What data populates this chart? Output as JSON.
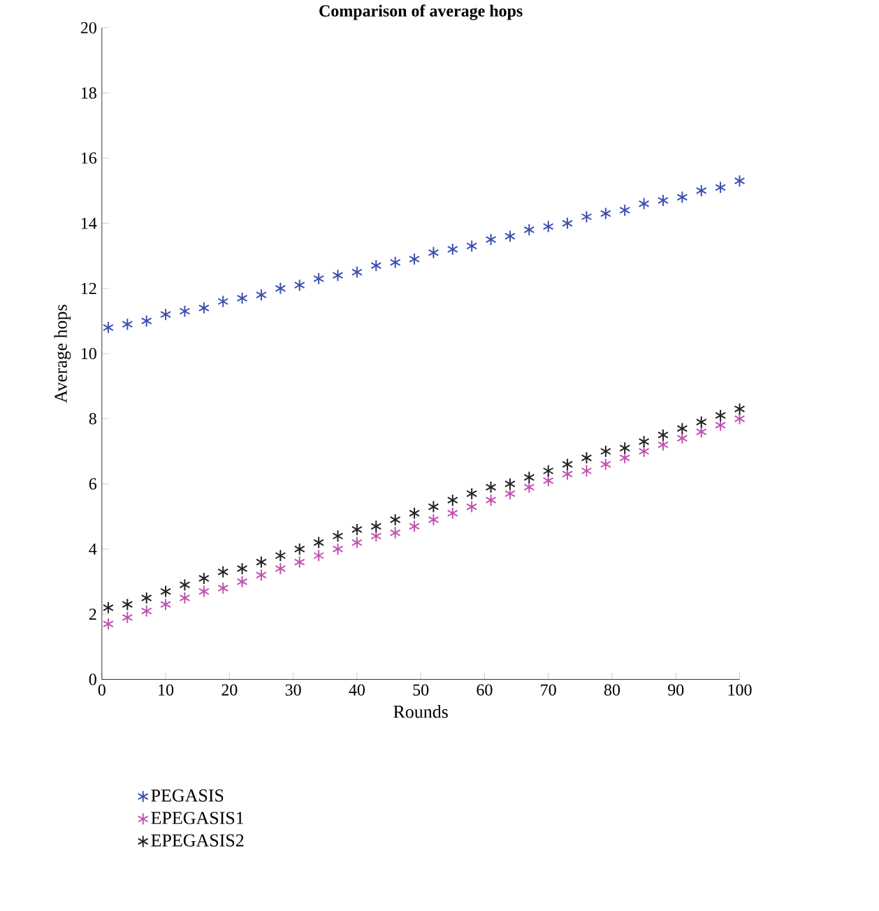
{
  "chart_data": {
    "type": "scatter",
    "title": "Comparison of average hops",
    "xlabel": "Rounds",
    "ylabel": "Average hops",
    "x": [
      1,
      4,
      7,
      10,
      13,
      16,
      19,
      22,
      25,
      28,
      31,
      34,
      37,
      40,
      43,
      46,
      49,
      52,
      55,
      58,
      61,
      64,
      67,
      70,
      73,
      76,
      79,
      82,
      85,
      88,
      91,
      94,
      97,
      100
    ],
    "series": [
      {
        "name": "PEGASIS",
        "color": "#3b4fb0",
        "values": [
          10.8,
          10.9,
          11.0,
          11.2,
          11.3,
          11.4,
          11.6,
          11.7,
          11.8,
          12.0,
          12.1,
          12.3,
          12.4,
          12.5,
          12.7,
          12.8,
          12.9,
          13.1,
          13.2,
          13.3,
          13.5,
          13.6,
          13.8,
          13.9,
          14.0,
          14.2,
          14.3,
          14.4,
          14.6,
          14.7,
          14.8,
          15.0,
          15.1,
          15.3
        ]
      },
      {
        "name": "EPEGASIS1",
        "color": "#c050b0",
        "values": [
          1.7,
          1.9,
          2.1,
          2.3,
          2.5,
          2.7,
          2.8,
          3.0,
          3.2,
          3.4,
          3.6,
          3.8,
          4.0,
          4.2,
          4.4,
          4.5,
          4.7,
          4.9,
          5.1,
          5.3,
          5.5,
          5.7,
          5.9,
          6.1,
          6.3,
          6.4,
          6.6,
          6.8,
          7.0,
          7.2,
          7.4,
          7.6,
          7.8,
          8.0
        ]
      },
      {
        "name": "EPEGASIS2",
        "color": "#222222",
        "values": [
          2.2,
          2.3,
          2.5,
          2.7,
          2.9,
          3.1,
          3.3,
          3.4,
          3.6,
          3.8,
          4.0,
          4.2,
          4.4,
          4.6,
          4.7,
          4.9,
          5.1,
          5.3,
          5.5,
          5.7,
          5.9,
          6.0,
          6.2,
          6.4,
          6.6,
          6.8,
          7.0,
          7.1,
          7.3,
          7.5,
          7.7,
          7.9,
          8.1,
          8.3
        ]
      }
    ],
    "xlim": [
      0,
      100
    ],
    "xticks": [
      0,
      10,
      20,
      30,
      40,
      50,
      60,
      70,
      80,
      90,
      100
    ],
    "ylim": [
      0,
      20
    ],
    "yticks": [
      0,
      2,
      4,
      6,
      8,
      10,
      12,
      14,
      16,
      18,
      20
    ],
    "grid": false,
    "legend": "bottom",
    "marker": "cross"
  }
}
